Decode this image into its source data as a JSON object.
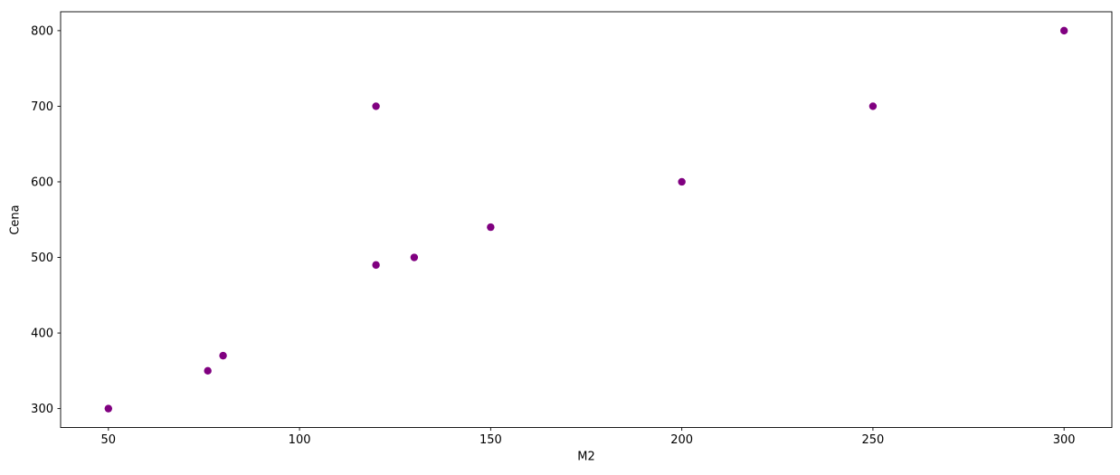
{
  "chart_data": {
    "type": "scatter",
    "title": "",
    "xlabel": "M2",
    "ylabel": "Cena",
    "points": [
      {
        "x": 50,
        "y": 300
      },
      {
        "x": 76,
        "y": 350
      },
      {
        "x": 80,
        "y": 370
      },
      {
        "x": 120,
        "y": 490
      },
      {
        "x": 120,
        "y": 700
      },
      {
        "x": 130,
        "y": 500
      },
      {
        "x": 150,
        "y": 540
      },
      {
        "x": 200,
        "y": 600
      },
      {
        "x": 250,
        "y": 700
      },
      {
        "x": 300,
        "y": 800
      }
    ],
    "xticks": [
      50,
      100,
      150,
      200,
      250,
      300
    ],
    "yticks": [
      300,
      400,
      500,
      600,
      700,
      800
    ],
    "xlim": [
      37.5,
      312.5
    ],
    "ylim": [
      275,
      825
    ],
    "grid": false,
    "legend": false,
    "marker_color": "#800080",
    "axis_color": "#000000",
    "background_color": "#ffffff"
  }
}
